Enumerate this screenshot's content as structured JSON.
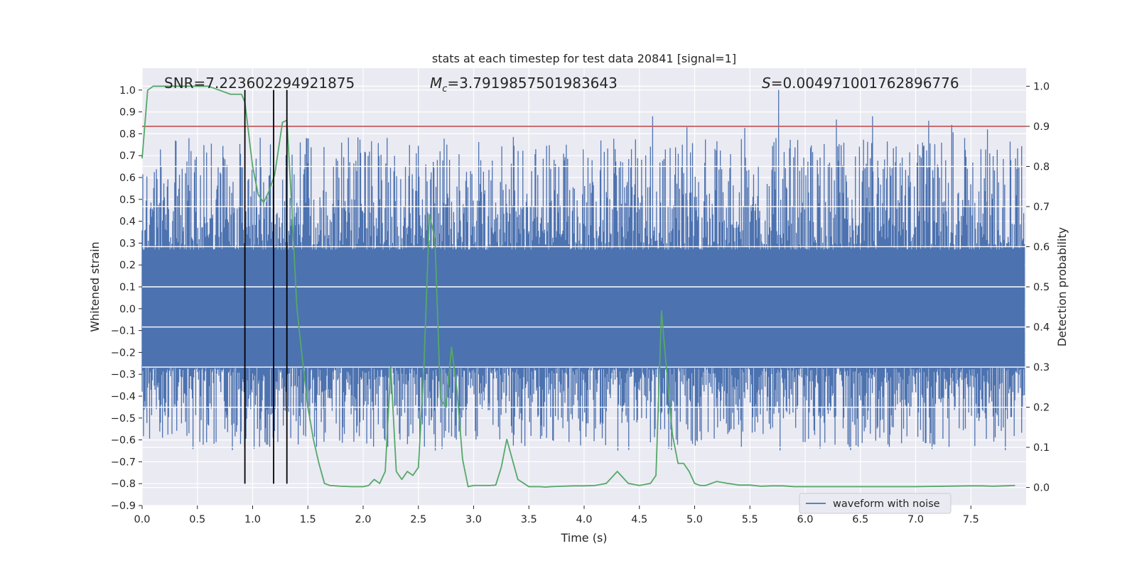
{
  "chart_data": {
    "type": "line",
    "title": "stats at each timestep for test data 20841 [signal=1]",
    "xlabel": "Time (s)",
    "ylabel_left": "Whitened strain",
    "ylabel_right": "Detection probability",
    "xlim": [
      0.0,
      8.0
    ],
    "ylim_left": [
      -0.9,
      1.1
    ],
    "ylim_right": [
      -0.045,
      1.045
    ],
    "x_ticks": [
      "0.0",
      "0.5",
      "1.0",
      "1.5",
      "2.0",
      "2.5",
      "3.0",
      "3.5",
      "4.0",
      "4.5",
      "5.0",
      "5.5",
      "6.0",
      "6.5",
      "7.0",
      "7.5"
    ],
    "y_left_ticks": [
      "−0.9",
      "−0.8",
      "−0.7",
      "−0.6",
      "−0.5",
      "−0.4",
      "−0.3",
      "−0.2",
      "−0.1",
      "0.0",
      "0.1",
      "0.2",
      "0.3",
      "0.4",
      "0.5",
      "0.6",
      "0.7",
      "0.8",
      "0.9",
      "1.0"
    ],
    "y_right_ticks": [
      "0.0",
      "0.1",
      "0.2",
      "0.3",
      "0.4",
      "0.5",
      "0.6",
      "0.7",
      "0.8",
      "0.9",
      "1.0"
    ],
    "annotations": {
      "snr": "SNR=7.223602294921875",
      "mc_symbol": "M",
      "mc_subscript": "c",
      "mc_value": "=3.7919857501983643",
      "s_symbol": "S",
      "s_value": "=0.004971001762896776"
    },
    "threshold": 0.9,
    "vertical_markers_s": [
      0.93,
      1.19,
      1.31
    ],
    "waveform": {
      "name": "waveform with noise",
      "color": "#4c72b0",
      "band_abs": 0.27,
      "peaks_s": [
        4.62,
        4.93,
        5.76,
        6.61,
        7.65
      ],
      "peak_values": [
        0.88,
        0.83,
        1.0,
        0.88,
        0.82
      ]
    },
    "detection_probability": {
      "color": "#55a868",
      "threshold_color": "#c44e52",
      "x": [
        0.0,
        0.05,
        0.1,
        0.2,
        0.3,
        0.4,
        0.5,
        0.6,
        0.7,
        0.8,
        0.9,
        0.93,
        1.0,
        1.05,
        1.1,
        1.15,
        1.2,
        1.27,
        1.31,
        1.35,
        1.4,
        1.45,
        1.5,
        1.55,
        1.6,
        1.65,
        1.7,
        1.8,
        1.9,
        2.0,
        2.05,
        2.1,
        2.15,
        2.2,
        2.25,
        2.3,
        2.35,
        2.4,
        2.45,
        2.5,
        2.55,
        2.6,
        2.65,
        2.7,
        2.75,
        2.8,
        2.85,
        2.9,
        2.95,
        3.0,
        3.05,
        3.1,
        3.15,
        3.2,
        3.25,
        3.3,
        3.4,
        3.5,
        3.55,
        3.6,
        3.65,
        3.7,
        3.8,
        3.9,
        4.0,
        4.1,
        4.2,
        4.3,
        4.4,
        4.5,
        4.6,
        4.65,
        4.7,
        4.75,
        4.8,
        4.85,
        4.9,
        4.95,
        5.0,
        5.05,
        5.1,
        5.15,
        5.2,
        5.3,
        5.4,
        5.5,
        5.6,
        5.7,
        5.8,
        5.9,
        6.0,
        6.5,
        7.0,
        7.5,
        7.6,
        7.7,
        7.8,
        7.9
      ],
      "y": [
        0.82,
        0.99,
        1.0,
        1.0,
        1.0,
        1.0,
        1.0,
        1.0,
        0.99,
        0.98,
        0.98,
        0.96,
        0.8,
        0.73,
        0.71,
        0.74,
        0.78,
        0.91,
        0.915,
        0.72,
        0.45,
        0.32,
        0.2,
        0.12,
        0.06,
        0.01,
        0.005,
        0.003,
        0.002,
        0.002,
        0.005,
        0.02,
        0.01,
        0.04,
        0.3,
        0.04,
        0.02,
        0.04,
        0.03,
        0.05,
        0.3,
        0.68,
        0.62,
        0.22,
        0.2,
        0.35,
        0.24,
        0.07,
        0.002,
        0.005,
        0.005,
        0.005,
        0.005,
        0.006,
        0.05,
        0.12,
        0.02,
        0.002,
        0.002,
        0.002,
        0.001,
        0.002,
        0.003,
        0.004,
        0.004,
        0.005,
        0.01,
        0.04,
        0.01,
        0.005,
        0.01,
        0.03,
        0.44,
        0.28,
        0.13,
        0.06,
        0.06,
        0.04,
        0.01,
        0.005,
        0.005,
        0.01,
        0.015,
        0.01,
        0.006,
        0.006,
        0.003,
        0.004,
        0.004,
        0.002,
        0.002,
        0.002,
        0.002,
        0.004,
        0.004,
        0.003,
        0.004,
        0.005
      ]
    },
    "legend": {
      "label": "waveform with noise",
      "placement": "lower-right"
    }
  }
}
